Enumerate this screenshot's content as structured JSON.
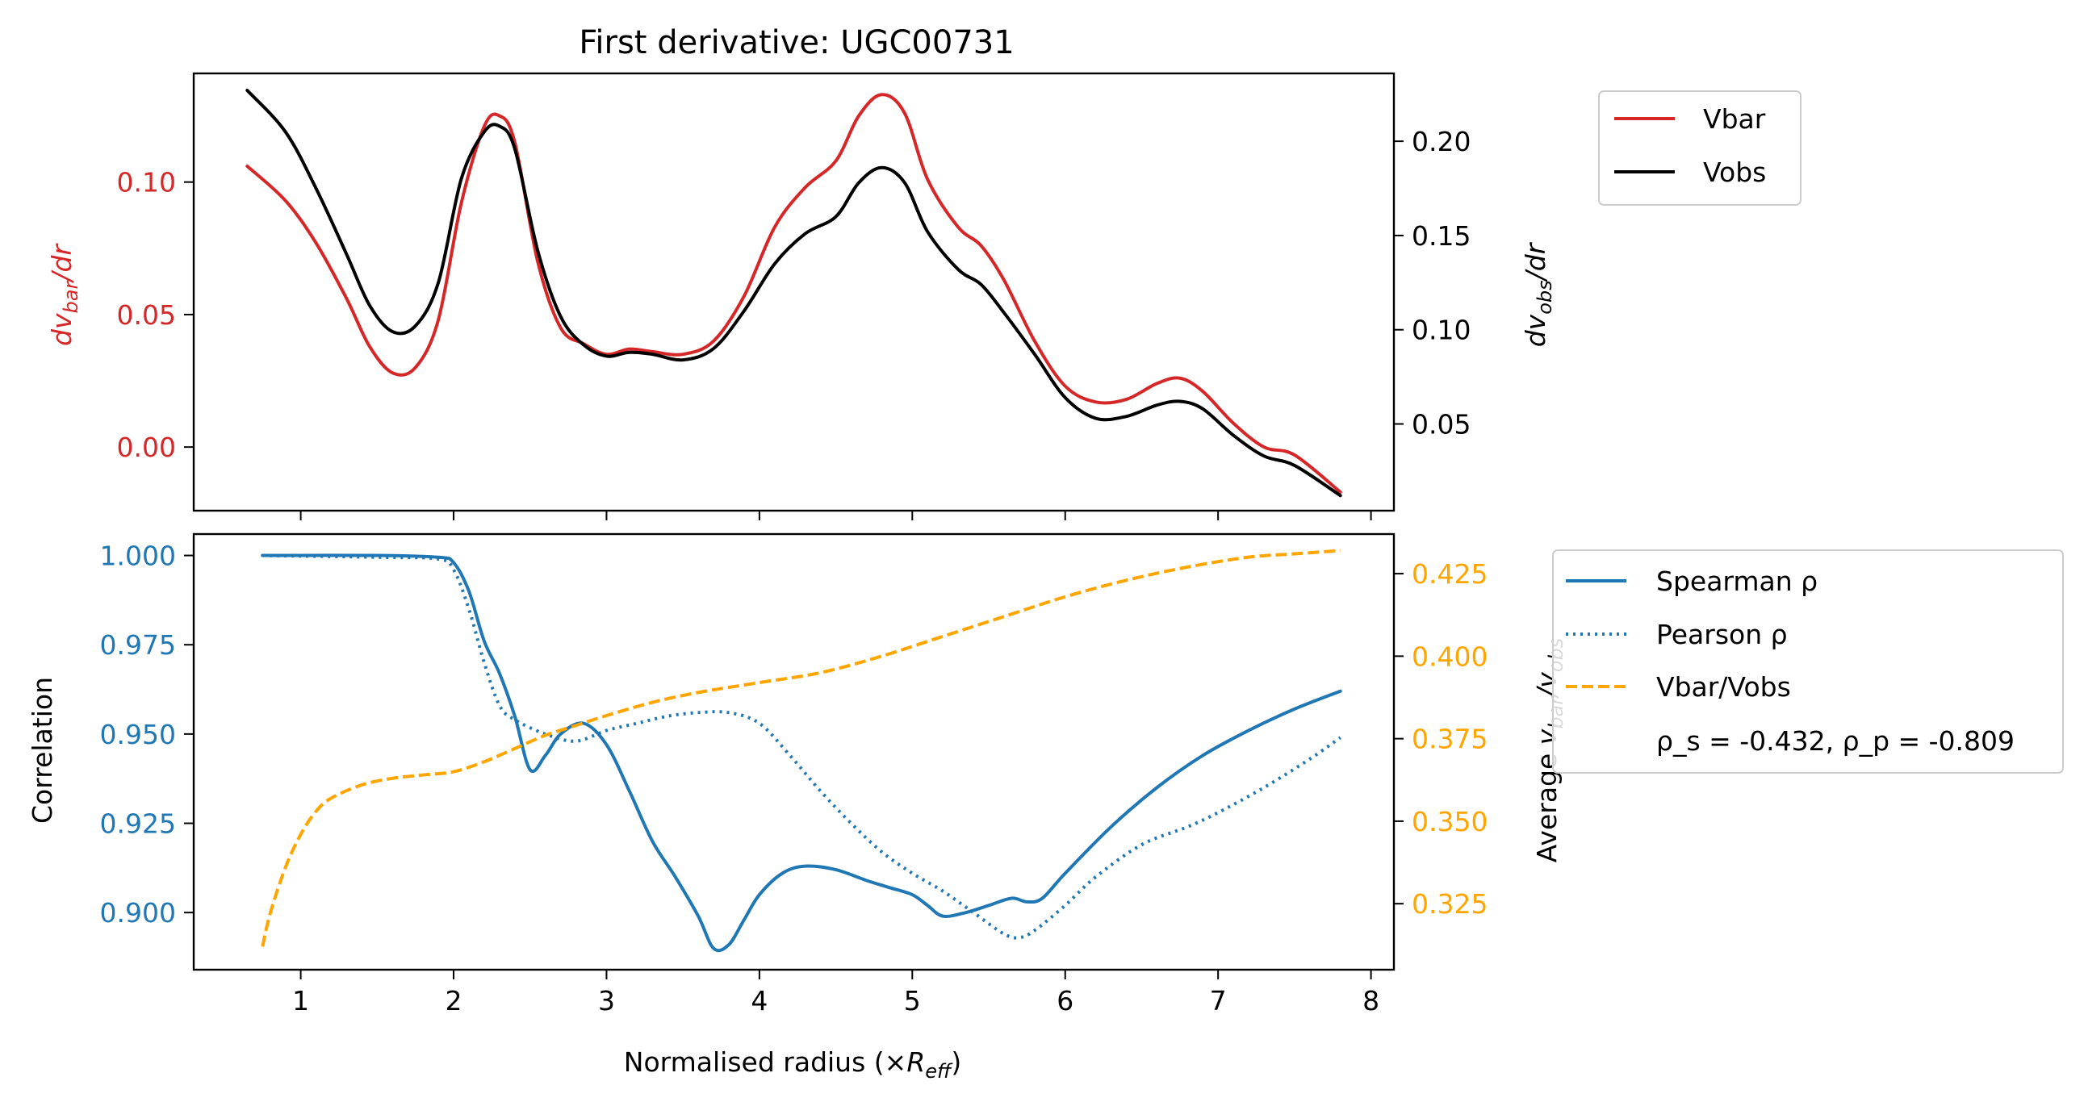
{
  "chart_data": [
    {
      "type": "line",
      "title": "First derivative: UGC00731",
      "ylabel_left": "dv_bar/dr",
      "ylabel_right": "dv_obs/dr",
      "ylim_left": [
        -0.024,
        0.141
      ],
      "ylim_right": [
        0.004,
        0.236
      ],
      "xlim": [
        0.3,
        8.15
      ],
      "left_ticks": [
        "0.00",
        "0.05",
        "0.10"
      ],
      "right_ticks": [
        "0.05",
        "0.10",
        "0.15",
        "0.20"
      ],
      "colors": {
        "vbar": "#d62728",
        "vobs": "#000000"
      },
      "legend": {
        "placement": "outside top-right",
        "entries": [
          "Vbar",
          "Vobs"
        ]
      },
      "series": [
        {
          "name": "Vbar",
          "axis": "left",
          "x": [
            0.65,
            0.9,
            1.1,
            1.3,
            1.45,
            1.6,
            1.75,
            1.9,
            2.05,
            2.2,
            2.3,
            2.4,
            2.55,
            2.7,
            2.85,
            3.0,
            3.15,
            3.3,
            3.5,
            3.7,
            3.9,
            4.1,
            4.3,
            4.5,
            4.65,
            4.8,
            4.95,
            5.1,
            5.3,
            5.45,
            5.6,
            5.8,
            6.0,
            6.2,
            6.4,
            6.6,
            6.75,
            6.9,
            7.1,
            7.3,
            7.5,
            7.8
          ],
          "y": [
            0.106,
            0.093,
            0.077,
            0.056,
            0.038,
            0.028,
            0.03,
            0.048,
            0.092,
            0.121,
            0.125,
            0.115,
            0.07,
            0.045,
            0.039,
            0.035,
            0.037,
            0.036,
            0.035,
            0.04,
            0.057,
            0.083,
            0.098,
            0.108,
            0.125,
            0.133,
            0.126,
            0.101,
            0.083,
            0.076,
            0.063,
            0.04,
            0.023,
            0.017,
            0.018,
            0.024,
            0.026,
            0.021,
            0.009,
            0.0,
            -0.003,
            -0.017
          ]
        },
        {
          "name": "Vobs",
          "axis": "right",
          "x": [
            0.65,
            0.9,
            1.1,
            1.3,
            1.45,
            1.6,
            1.75,
            1.9,
            2.05,
            2.2,
            2.3,
            2.4,
            2.55,
            2.7,
            2.85,
            3.0,
            3.15,
            3.3,
            3.5,
            3.7,
            3.9,
            4.1,
            4.3,
            4.5,
            4.65,
            4.8,
            4.95,
            5.1,
            5.3,
            5.45,
            5.6,
            5.8,
            6.0,
            6.2,
            6.4,
            6.6,
            6.75,
            6.9,
            7.1,
            7.3,
            7.5,
            7.8
          ],
          "y": [
            0.227,
            0.205,
            0.175,
            0.14,
            0.113,
            0.099,
            0.102,
            0.125,
            0.18,
            0.205,
            0.208,
            0.196,
            0.142,
            0.107,
            0.092,
            0.086,
            0.088,
            0.087,
            0.084,
            0.09,
            0.11,
            0.135,
            0.151,
            0.16,
            0.178,
            0.186,
            0.178,
            0.152,
            0.132,
            0.124,
            0.109,
            0.087,
            0.064,
            0.053,
            0.054,
            0.06,
            0.062,
            0.058,
            0.044,
            0.033,
            0.028,
            0.012
          ]
        }
      ]
    },
    {
      "type": "line",
      "xlabel": "Normalised radius (×R_eff)",
      "ylabel_left": "Correlation",
      "ylabel_right": "Average v_bar/v_obs",
      "ylim_left": [
        0.884,
        1.006
      ],
      "ylim_right": [
        0.305,
        0.437
      ],
      "xlim": [
        0.3,
        8.15
      ],
      "x_ticks": [
        "1",
        "2",
        "3",
        "4",
        "5",
        "6",
        "7",
        "8"
      ],
      "left_ticks": [
        "0.900",
        "0.925",
        "0.950",
        "0.975",
        "1.000"
      ],
      "right_ticks": [
        "0.325",
        "0.350",
        "0.375",
        "0.400",
        "0.425"
      ],
      "colors": {
        "spearman": "#1f77b4",
        "pearson": "#1f77b4",
        "ratio": "#ffa500"
      },
      "legend": {
        "placement": "outside right",
        "entries": [
          "Spearman ρ",
          "Pearson ρ",
          "Vbar/Vobs"
        ]
      },
      "annotation": "ρ_s = -0.432, ρ_p = -0.809",
      "series": [
        {
          "name": "Spearman ρ",
          "axis": "left",
          "style": "solid",
          "x": [
            0.75,
            1.5,
            1.9,
            2.0,
            2.1,
            2.2,
            2.3,
            2.4,
            2.5,
            2.6,
            2.7,
            2.85,
            3.0,
            3.15,
            3.3,
            3.45,
            3.6,
            3.7,
            3.8,
            3.9,
            4.0,
            4.15,
            4.3,
            4.5,
            4.7,
            4.85,
            5.0,
            5.1,
            5.2,
            5.35,
            5.5,
            5.65,
            5.75,
            5.85,
            6.0,
            6.3,
            6.6,
            6.9,
            7.2,
            7.5,
            7.8
          ],
          "y": [
            1.0,
            1.0,
            0.9995,
            0.998,
            0.99,
            0.976,
            0.967,
            0.955,
            0.94,
            0.944,
            0.95,
            0.953,
            0.947,
            0.934,
            0.92,
            0.91,
            0.899,
            0.89,
            0.891,
            0.898,
            0.905,
            0.911,
            0.913,
            0.912,
            0.909,
            0.907,
            0.905,
            0.902,
            0.899,
            0.9,
            0.902,
            0.904,
            0.903,
            0.904,
            0.911,
            0.924,
            0.935,
            0.944,
            0.951,
            0.957,
            0.962
          ]
        },
        {
          "name": "Pearson ρ",
          "axis": "left",
          "style": "dotted",
          "x": [
            0.75,
            1.5,
            1.9,
            2.0,
            2.1,
            2.2,
            2.3,
            2.4,
            2.6,
            2.8,
            3.0,
            3.2,
            3.4,
            3.6,
            3.8,
            4.0,
            4.2,
            4.4,
            4.6,
            4.8,
            5.0,
            5.2,
            5.4,
            5.6,
            5.7,
            5.8,
            6.0,
            6.2,
            6.5,
            6.8,
            7.0,
            7.3,
            7.6,
            7.8
          ],
          "y": [
            1.0,
            0.9995,
            0.999,
            0.996,
            0.985,
            0.97,
            0.958,
            0.954,
            0.95,
            0.948,
            0.951,
            0.953,
            0.955,
            0.956,
            0.956,
            0.953,
            0.944,
            0.934,
            0.925,
            0.917,
            0.911,
            0.906,
            0.9,
            0.894,
            0.893,
            0.895,
            0.902,
            0.91,
            0.919,
            0.924,
            0.928,
            0.935,
            0.943,
            0.949
          ]
        },
        {
          "name": "Vbar/Vobs",
          "axis": "right",
          "style": "dashed",
          "x": [
            0.75,
            0.8,
            0.9,
            1.0,
            1.1,
            1.2,
            1.4,
            1.6,
            1.8,
            2.0,
            2.2,
            2.4,
            2.6,
            2.8,
            3.0,
            3.3,
            3.6,
            4.0,
            4.4,
            4.8,
            5.2,
            5.6,
            6.0,
            6.4,
            6.8,
            7.2,
            7.5,
            7.8
          ],
          "y": [
            0.312,
            0.322,
            0.336,
            0.346,
            0.353,
            0.357,
            0.361,
            0.363,
            0.364,
            0.365,
            0.368,
            0.372,
            0.376,
            0.379,
            0.382,
            0.386,
            0.389,
            0.392,
            0.395,
            0.4,
            0.406,
            0.412,
            0.418,
            0.423,
            0.427,
            0.43,
            0.431,
            0.432
          ]
        }
      ]
    }
  ]
}
